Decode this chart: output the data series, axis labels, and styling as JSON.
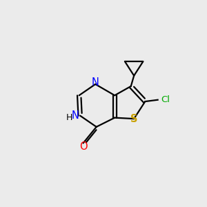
{
  "background_color": "#ebebeb",
  "bond_color": "#000000",
  "N_color": "#0000ff",
  "S_color": "#c8a000",
  "O_color": "#ff0000",
  "Cl_color": "#00aa00",
  "text_color": "#000000",
  "figsize": [
    3.0,
    3.0
  ],
  "dpi": 100,
  "xlim": [
    0,
    10
  ],
  "ylim": [
    0,
    10
  ]
}
